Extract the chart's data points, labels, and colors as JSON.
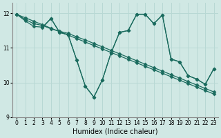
{
  "title": "",
  "xlabel": "Humidex (Indice chaleur)",
  "ylabel": "",
  "xlim": [
    -0.5,
    23.5
  ],
  "ylim": [
    9,
    12.3
  ],
  "yticks": [
    9,
    10,
    11,
    12
  ],
  "xticks": [
    0,
    1,
    2,
    3,
    4,
    5,
    6,
    7,
    8,
    9,
    10,
    11,
    12,
    13,
    14,
    15,
    16,
    17,
    18,
    19,
    20,
    21,
    22,
    23
  ],
  "bg_color": "#d0e8e4",
  "line_color": "#1a6b5e",
  "grid_color": "#b8d8d4",
  "line1_x": [
    0,
    1,
    2,
    3,
    4,
    5,
    6,
    7,
    8,
    9,
    10,
    11,
    12,
    13,
    14,
    15,
    16,
    17,
    18,
    19,
    20,
    21,
    22,
    23
  ],
  "line1_y": [
    11.97,
    11.87,
    11.77,
    11.67,
    11.57,
    11.47,
    11.37,
    11.27,
    11.17,
    11.07,
    10.97,
    10.87,
    10.77,
    10.67,
    10.57,
    10.47,
    10.37,
    10.27,
    10.17,
    10.07,
    9.97,
    9.87,
    9.77,
    9.67
  ],
  "line2_x": [
    0,
    1,
    2,
    3,
    4,
    5,
    6,
    7,
    8,
    9,
    10,
    11,
    12,
    13,
    14,
    15,
    16,
    17,
    18,
    19,
    20,
    21,
    22,
    23
  ],
  "line2_y": [
    11.97,
    11.82,
    11.7,
    11.65,
    11.55,
    11.48,
    11.42,
    11.32,
    11.23,
    11.13,
    11.03,
    10.93,
    10.83,
    10.73,
    10.63,
    10.53,
    10.43,
    10.33,
    10.23,
    10.13,
    10.03,
    9.93,
    9.83,
    9.73
  ],
  "line3_x": [
    0,
    1,
    2,
    3,
    4,
    5,
    6,
    7,
    8,
    9,
    10,
    11,
    12,
    13,
    14,
    15,
    16,
    17,
    18,
    19,
    20,
    21,
    22,
    23
  ],
  "line3_y": [
    11.97,
    11.78,
    11.62,
    11.6,
    11.85,
    11.45,
    11.38,
    10.65,
    9.9,
    9.58,
    10.08,
    10.85,
    11.45,
    11.5,
    11.97,
    11.97,
    11.7,
    11.95,
    10.68,
    10.6,
    10.2,
    10.1,
    9.95,
    10.4
  ],
  "line4_x": [
    3,
    4,
    5,
    6,
    7,
    8,
    9,
    10,
    11,
    12,
    13,
    14,
    15,
    16,
    17,
    18,
    19,
    20,
    21,
    22,
    23
  ],
  "line4_y": [
    11.58,
    11.85,
    11.45,
    11.38,
    10.65,
    9.9,
    9.58,
    10.08,
    10.85,
    11.45,
    11.5,
    11.97,
    11.97,
    11.7,
    11.95,
    10.68,
    10.6,
    10.2,
    10.1,
    9.95,
    10.4
  ],
  "marker": "D",
  "markersize": 2.5,
  "linewidth": 0.9
}
